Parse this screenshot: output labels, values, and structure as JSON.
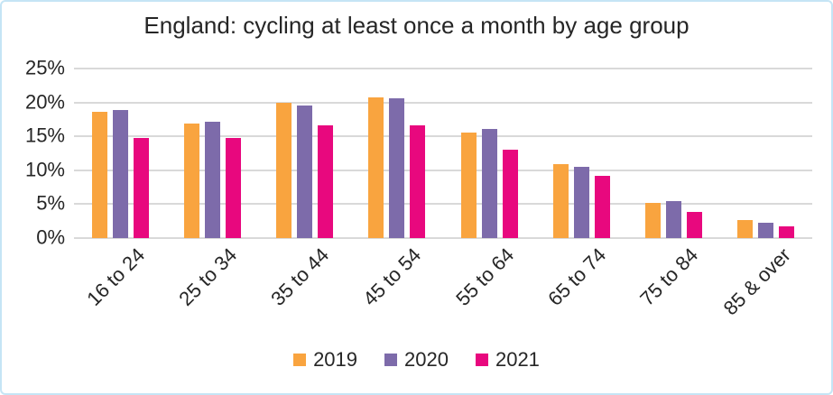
{
  "chart_data": {
    "type": "bar",
    "title": "England: cycling at least once a month by age group",
    "categories": [
      "16 to 24",
      "25 to 34",
      "35 to 44",
      "45 to 54",
      "55 to 64",
      "65 to 74",
      "75 to 84",
      "85 & over"
    ],
    "series": [
      {
        "name": "2019",
        "color": "#F9A43F",
        "values": [
          18.6,
          16.9,
          19.9,
          20.8,
          15.5,
          10.9,
          5.2,
          2.6
        ]
      },
      {
        "name": "2020",
        "color": "#7D6BAA",
        "values": [
          18.9,
          17.1,
          19.6,
          20.6,
          16.1,
          10.5,
          5.4,
          2.2
        ]
      },
      {
        "name": "2021",
        "color": "#E8087E",
        "values": [
          14.7,
          14.7,
          16.6,
          16.6,
          13.1,
          9.2,
          3.9,
          1.7
        ]
      }
    ],
    "xlabel": "",
    "ylabel": "",
    "ylim": [
      0,
      25
    ],
    "yticks_top_to_bottom": [
      "25%",
      "20%",
      "15%",
      "10%",
      "5%",
      "0%"
    ],
    "grid": true,
    "legend_position": "bottom"
  },
  "style": {
    "gridline_color": "#D9D9D9",
    "frame_border_color": "#C5E5F5",
    "text_color": "#262626",
    "background_color": "#FFFFFF"
  }
}
